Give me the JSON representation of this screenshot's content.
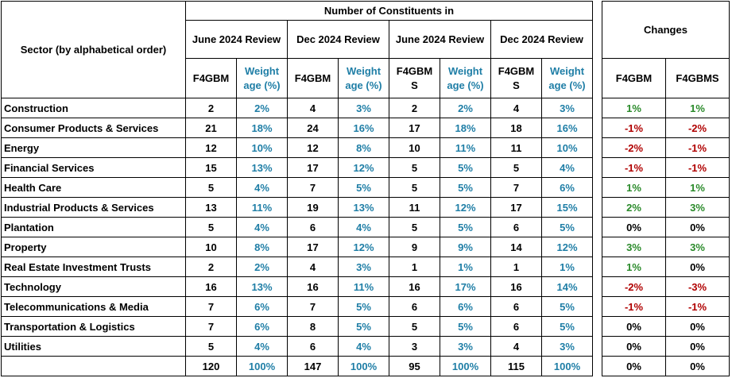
{
  "header": {
    "sector": "Sector (by alphabetical order)",
    "group": "Number of Constituents in",
    "changes": "Changes",
    "reviews": [
      "June 2024 Review",
      "Dec 2024 Review",
      "June 2024 Review",
      "Dec 2024 Review"
    ],
    "columns": [
      "F4GBM",
      "Weight age (%)",
      "F4GBM",
      "Weight age (%)",
      "F4GBM S",
      "Weight age (%)",
      "F4GBM S",
      "Weight age (%)"
    ],
    "change_columns": [
      "F4GBM",
      "F4GBMS"
    ]
  },
  "table": {
    "rows": [
      [
        "Construction",
        "2",
        "2%",
        "4",
        "3%",
        "2",
        "2%",
        "4",
        "3%",
        "1%",
        "1%"
      ],
      [
        "Consumer Products & Services",
        "21",
        "18%",
        "24",
        "16%",
        "17",
        "18%",
        "18",
        "16%",
        "-1%",
        "-2%"
      ],
      [
        "Energy",
        "12",
        "10%",
        "12",
        "8%",
        "10",
        "11%",
        "11",
        "10%",
        "-2%",
        "-1%"
      ],
      [
        "Financial Services",
        "15",
        "13%",
        "17",
        "12%",
        "5",
        "5%",
        "5",
        "4%",
        "-1%",
        "-1%"
      ],
      [
        "Health Care",
        "5",
        "4%",
        "7",
        "5%",
        "5",
        "5%",
        "7",
        "6%",
        "1%",
        "1%"
      ],
      [
        "Industrial Products & Services",
        "13",
        "11%",
        "19",
        "13%",
        "11",
        "12%",
        "17",
        "15%",
        "2%",
        "3%"
      ],
      [
        "Plantation",
        "5",
        "4%",
        "6",
        "4%",
        "5",
        "5%",
        "6",
        "5%",
        "0%",
        "0%"
      ],
      [
        "Property",
        "10",
        "8%",
        "17",
        "12%",
        "9",
        "9%",
        "14",
        "12%",
        "3%",
        "3%"
      ],
      [
        "Real Estate Investment Trusts",
        "2",
        "2%",
        "4",
        "3%",
        "1",
        "1%",
        "1",
        "1%",
        "1%",
        "0%"
      ],
      [
        "Technology",
        "16",
        "13%",
        "16",
        "11%",
        "16",
        "17%",
        "16",
        "14%",
        "-2%",
        "-3%"
      ],
      [
        "Telecommunications & Media",
        "7",
        "6%",
        "7",
        "5%",
        "6",
        "6%",
        "6",
        "5%",
        "-1%",
        "-1%"
      ],
      [
        "Transportation & Logistics",
        "7",
        "6%",
        "8",
        "5%",
        "5",
        "5%",
        "6",
        "5%",
        "0%",
        "0%"
      ],
      [
        "Utilities",
        "5",
        "4%",
        "6",
        "4%",
        "3",
        "3%",
        "4",
        "3%",
        "0%",
        "0%"
      ]
    ],
    "total": [
      "120",
      "100%",
      "147",
      "100%",
      "95",
      "100%",
      "115",
      "100%",
      "0%",
      "0%"
    ]
  }
}
